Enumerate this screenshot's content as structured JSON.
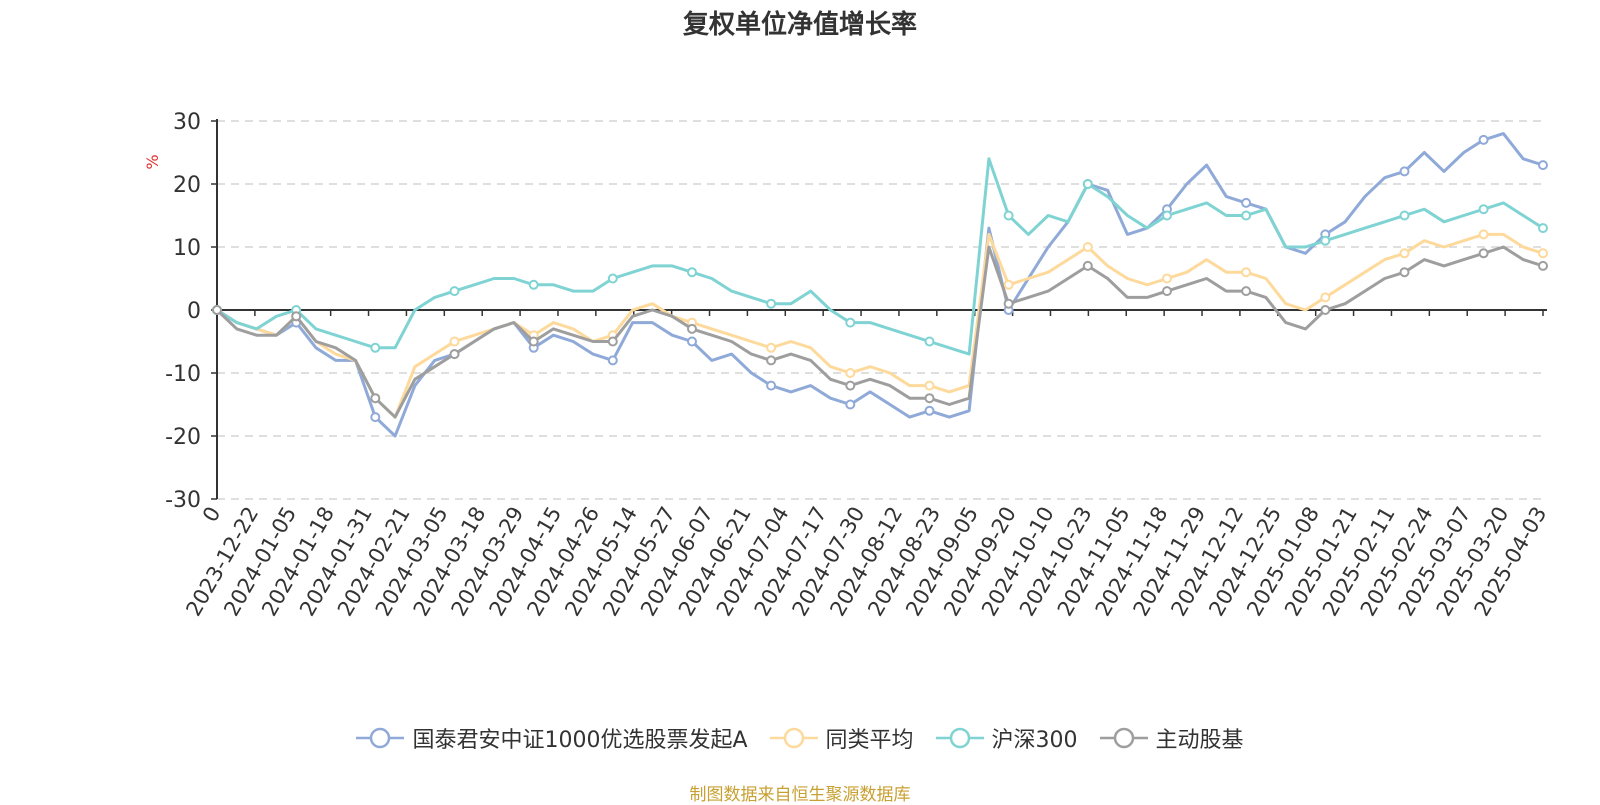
{
  "chart_data": {
    "type": "line",
    "title": "复权单位净值增长率",
    "ylabel": "%",
    "xlabel": "",
    "ylim": [
      -30,
      30
    ],
    "yticks": [
      -30,
      -20,
      -10,
      0,
      10,
      20,
      30
    ],
    "x_tick_labels": [
      "0",
      "2023-12-22",
      "2024-01-05",
      "2024-01-18",
      "2024-01-31",
      "2024-02-21",
      "2024-03-05",
      "2024-03-18",
      "2024-03-29",
      "2024-04-15",
      "2024-04-26",
      "2024-05-14",
      "2024-05-27",
      "2024-06-07",
      "2024-06-21",
      "2024-07-04",
      "2024-07-17",
      "2024-07-30",
      "2024-08-12",
      "2024-08-23",
      "2024-09-05",
      "2024-09-20",
      "2024-10-10",
      "2024-10-23",
      "2024-11-05",
      "2024-11-18",
      "2024-11-29",
      "2024-12-12",
      "2024-12-25",
      "2025-01-08",
      "2025-01-21",
      "2025-02-11",
      "2025-02-24",
      "2025-03-07",
      "2025-03-20",
      "2025-04-03"
    ],
    "grid": true,
    "legend_position": "bottom",
    "series": [
      {
        "name": "国泰君安中证1000优选股票发起A",
        "color": "#8fa9d8",
        "values": [
          0,
          -2,
          -3,
          -4,
          -2,
          -6,
          -8,
          -8,
          -17,
          -20,
          -12,
          -8,
          -7,
          -5,
          -3,
          -2,
          -6,
          -4,
          -5,
          -7,
          -8,
          -2,
          -2,
          -4,
          -5,
          -8,
          -7,
          -10,
          -12,
          -13,
          -12,
          -14,
          -15,
          -13,
          -15,
          -17,
          -16,
          -17,
          -16,
          13,
          0,
          5,
          10,
          14,
          20,
          19,
          12,
          13,
          16,
          20,
          23,
          18,
          17,
          16,
          10,
          9,
          12,
          14,
          18,
          21,
          22,
          25,
          22,
          25,
          27,
          28,
          24,
          23
        ]
      },
      {
        "name": "同类平均",
        "color": "#fdd99b",
        "values": [
          0,
          -2,
          -3,
          -4,
          -1,
          -5,
          -7,
          -8,
          -14,
          -17,
          -9,
          -7,
          -5,
          -4,
          -3,
          -2,
          -4,
          -2,
          -3,
          -5,
          -4,
          0,
          1,
          -1,
          -2,
          -3,
          -4,
          -5,
          -6,
          -5,
          -6,
          -9,
          -10,
          -9,
          -10,
          -12,
          -12,
          -13,
          -12,
          12,
          4,
          5,
          6,
          8,
          10,
          7,
          5,
          4,
          5,
          6,
          8,
          6,
          6,
          5,
          1,
          0,
          2,
          4,
          6,
          8,
          9,
          11,
          10,
          11,
          12,
          12,
          10,
          9
        ]
      },
      {
        "name": "沪深300",
        "color": "#7fd3d3",
        "values": [
          0,
          -2,
          -3,
          -1,
          0,
          -3,
          -4,
          -5,
          -6,
          -6,
          0,
          2,
          3,
          4,
          5,
          5,
          4,
          4,
          3,
          3,
          5,
          6,
          7,
          7,
          6,
          5,
          3,
          2,
          1,
          1,
          3,
          0,
          -2,
          -2,
          -3,
          -4,
          -5,
          -6,
          -7,
          24,
          15,
          12,
          15,
          14,
          20,
          18,
          15,
          13,
          15,
          16,
          17,
          15,
          15,
          16,
          10,
          10,
          11,
          12,
          13,
          14,
          15,
          16,
          14,
          15,
          16,
          17,
          15,
          13
        ]
      },
      {
        "name": "主动股基",
        "color": "#9e9e9e",
        "values": [
          0,
          -3,
          -4,
          -4,
          -1,
          -5,
          -6,
          -8,
          -14,
          -17,
          -11,
          -9,
          -7,
          -5,
          -3,
          -2,
          -5,
          -3,
          -4,
          -5,
          -5,
          -1,
          0,
          -1,
          -3,
          -4,
          -5,
          -7,
          -8,
          -7,
          -8,
          -11,
          -12,
          -11,
          -12,
          -14,
          -14,
          -15,
          -14,
          10,
          1,
          2,
          3,
          5,
          7,
          5,
          2,
          2,
          3,
          4,
          5,
          3,
          3,
          2,
          -2,
          -3,
          0,
          1,
          3,
          5,
          6,
          8,
          7,
          8,
          9,
          10,
          8,
          7
        ]
      }
    ]
  },
  "footer": {
    "source": "制图数据来自恒生聚源数据库"
  }
}
